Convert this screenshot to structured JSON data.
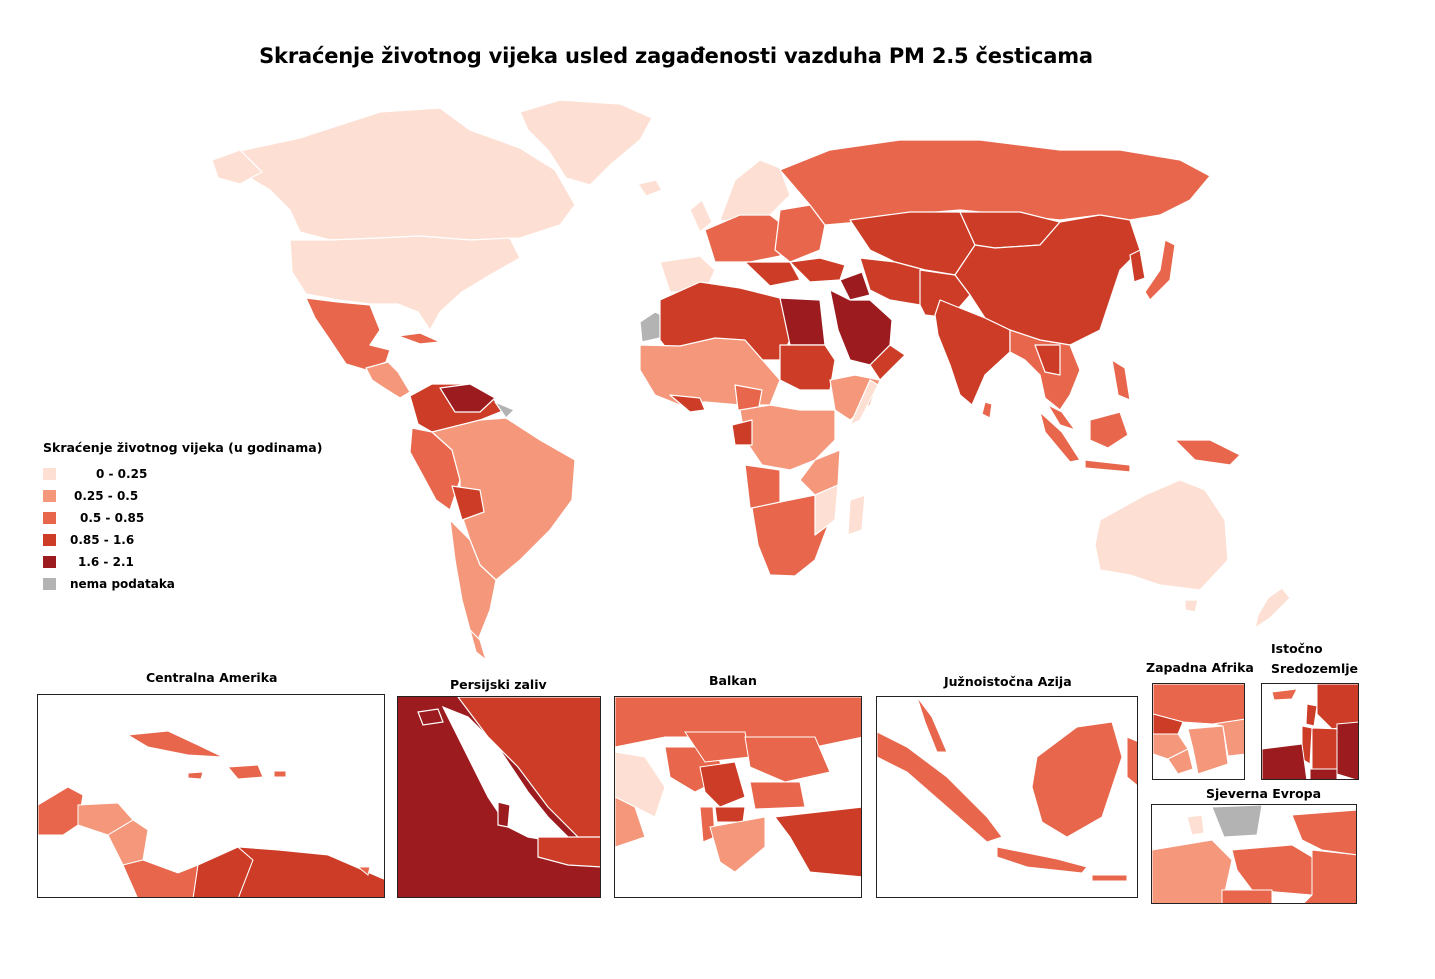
{
  "title": "Skraćenje životnog vijeka usled zagađenosti vazduha PM 2.5 česticama",
  "legend": {
    "title": "Skraćenje životnog vijeka (u godinama)",
    "items": [
      {
        "label": "0 - 0.25",
        "color": "#fde0d3"
      },
      {
        "label": "0.25 - 0.5",
        "color": "#f4977a"
      },
      {
        "label": "0.5 - 0.85",
        "color": "#e8664b"
      },
      {
        "label": "0.85 - 1.6",
        "color": "#cc3c26"
      },
      {
        "label": "1.6 - 2.1",
        "color": "#9b1b1e"
      },
      {
        "label": "nema podataka",
        "color": "#b3b3b3"
      }
    ]
  },
  "insets": {
    "central_america": "Centralna Amerika",
    "persian_gulf": "Persijski zaliv",
    "balkans": "Balkan",
    "southeast_asia": "Južnoistočna Azija",
    "west_africa": "Zapadna Afrika",
    "east_mediterranean_1": "Istočno",
    "east_mediterranean_2": "Sredozemlje",
    "northern_europe": "Sjeverna Evropa"
  }
}
